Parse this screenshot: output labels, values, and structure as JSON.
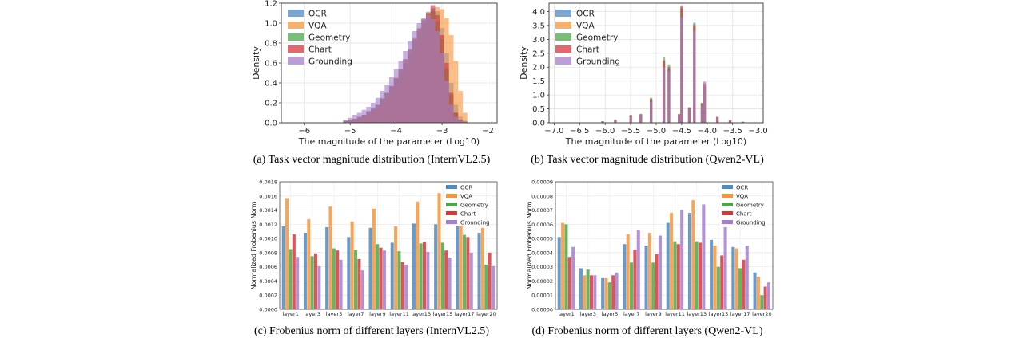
{
  "colors": {
    "OCR": "#4e8ac3",
    "VQA": "#f7953b",
    "Geometry": "#4aa84a",
    "Chart": "#d9363c",
    "Grounding": "#a57fcc"
  },
  "chart_data": [
    {
      "type": "histogram",
      "caption": "(a) Task vector magnitude distribution (InternVL2.5)",
      "xlabel": "The magnitude of the parameter (Log10)",
      "ylabel": "Density",
      "xlim": [
        -6.5,
        -1.8
      ],
      "ylim": [
        0,
        1.2
      ],
      "xticks": [
        -6,
        -5,
        -4,
        -3,
        -2
      ],
      "yticks": [
        0.0,
        0.2,
        0.4,
        0.6,
        0.8,
        1.0,
        1.2
      ],
      "legend": "top-left",
      "grid": true,
      "series_names": [
        "OCR",
        "VQA",
        "Geometry",
        "Chart",
        "Grounding"
      ],
      "bins_x": [
        -5.1,
        -5.0,
        -4.9,
        -4.8,
        -4.7,
        -4.6,
        -4.5,
        -4.4,
        -4.3,
        -4.2,
        -4.1,
        -4.0,
        -3.9,
        -3.8,
        -3.7,
        -3.6,
        -3.5,
        -3.4,
        -3.3,
        -3.2,
        -3.1,
        -3.0,
        -2.9,
        -2.8,
        -2.7,
        -2.6,
        -2.5
      ],
      "series": [
        {
          "name": "OCR",
          "values": [
            0.02,
            0.03,
            0.04,
            0.05,
            0.08,
            0.12,
            0.15,
            0.18,
            0.25,
            0.3,
            0.36,
            0.44,
            0.52,
            0.6,
            0.7,
            0.82,
            0.92,
            1.0,
            1.08,
            1.15,
            1.12,
            0.95,
            0.7,
            0.4,
            0.18,
            0.06,
            0.02
          ]
        },
        {
          "name": "VQA",
          "values": [
            0.01,
            0.02,
            0.03,
            0.04,
            0.06,
            0.08,
            0.1,
            0.13,
            0.17,
            0.21,
            0.26,
            0.32,
            0.4,
            0.48,
            0.57,
            0.66,
            0.76,
            0.86,
            0.96,
            1.06,
            1.16,
            1.14,
            1.05,
            0.88,
            0.62,
            0.32,
            0.1
          ]
        },
        {
          "name": "Geometry",
          "values": [
            0.02,
            0.03,
            0.04,
            0.06,
            0.08,
            0.11,
            0.14,
            0.18,
            0.24,
            0.3,
            0.37,
            0.45,
            0.54,
            0.63,
            0.73,
            0.84,
            0.94,
            1.03,
            1.1,
            1.12,
            1.02,
            0.84,
            0.55,
            0.28,
            0.1,
            0.03,
            0.01
          ]
        },
        {
          "name": "Chart",
          "values": [
            0.02,
            0.03,
            0.04,
            0.06,
            0.08,
            0.11,
            0.14,
            0.18,
            0.24,
            0.3,
            0.37,
            0.45,
            0.54,
            0.64,
            0.74,
            0.85,
            0.95,
            1.04,
            1.11,
            1.18,
            1.08,
            0.88,
            0.6,
            0.3,
            0.1,
            0.03,
            0.01
          ]
        },
        {
          "name": "Grounding",
          "values": [
            0.03,
            0.05,
            0.08,
            0.1,
            0.13,
            0.16,
            0.2,
            0.25,
            0.32,
            0.38,
            0.46,
            0.54,
            0.62,
            0.72,
            0.82,
            0.92,
            1.0,
            1.05,
            1.08,
            1.04,
            0.92,
            0.7,
            0.42,
            0.18,
            0.06,
            0.02,
            0.01
          ]
        }
      ]
    },
    {
      "type": "histogram",
      "caption": "(b) Task vector magnitude distribution (Qwen2-VL)",
      "xlabel": "The magnitude of the parameter (Log10)",
      "ylabel": "Density",
      "xlim": [
        -7.1,
        -2.9
      ],
      "ylim": [
        0,
        4.3
      ],
      "xticks": [
        -7.0,
        -6.5,
        -6.0,
        -5.5,
        -5.0,
        -4.5,
        -4.0,
        -3.5,
        -3.0
      ],
      "yticks": [
        0.0,
        0.5,
        1.0,
        1.5,
        2.0,
        2.5,
        3.0,
        3.5,
        4.0
      ],
      "legend": "top-left",
      "grid": true,
      "series_names": [
        "OCR",
        "VQA",
        "Geometry",
        "Chart",
        "Grounding"
      ],
      "bins_x": [
        -6.05,
        -5.8,
        -5.5,
        -5.3,
        -5.1,
        -4.85,
        -4.75,
        -4.55,
        -4.5,
        -4.35,
        -4.25,
        -4.1,
        -4.05,
        -3.8,
        -3.55,
        -3.3
      ],
      "series": [
        {
          "name": "OCR",
          "values": [
            0.05,
            0.1,
            0.28,
            0.3,
            0.85,
            2.2,
            1.95,
            0.3,
            4.15,
            0.55,
            3.55,
            0.7,
            1.35,
            0.2,
            0.08,
            0.03
          ]
        },
        {
          "name": "VQA",
          "values": [
            0.05,
            0.1,
            0.25,
            0.3,
            0.8,
            2.1,
            1.8,
            0.28,
            4.0,
            0.5,
            3.4,
            0.65,
            1.45,
            0.22,
            0.1,
            0.04
          ]
        },
        {
          "name": "Geometry",
          "values": [
            0.05,
            0.12,
            0.28,
            0.32,
            0.9,
            2.35,
            2.1,
            0.32,
            4.1,
            0.55,
            3.6,
            0.72,
            1.3,
            0.2,
            0.08,
            0.03
          ]
        },
        {
          "name": "Chart",
          "values": [
            0.05,
            0.1,
            0.26,
            0.3,
            0.85,
            2.25,
            2.0,
            0.3,
            4.2,
            0.55,
            3.5,
            0.7,
            1.4,
            0.21,
            0.09,
            0.03
          ]
        },
        {
          "name": "Grounding",
          "values": [
            0.04,
            0.09,
            0.22,
            0.28,
            0.75,
            2.0,
            1.85,
            0.28,
            3.8,
            0.5,
            3.3,
            0.64,
            1.48,
            0.2,
            0.1,
            0.04
          ]
        }
      ]
    },
    {
      "type": "bar",
      "caption": "(c) Frobenius norm of different layers (InternVL2.5)",
      "xlabel": "",
      "ylabel": "Normalized Frobenius Norm",
      "categories": [
        "layer1",
        "layer3",
        "layer5",
        "layer7",
        "layer9",
        "layer11",
        "layer13",
        "layer15",
        "layer17",
        "layer20"
      ],
      "ylim": [
        0,
        0.0018
      ],
      "yticks": [
        "0.0000",
        "0.0002",
        "0.0004",
        "0.0006",
        "0.0008",
        "0.0010",
        "0.0012",
        "0.0014",
        "0.0016",
        "0.0018"
      ],
      "legend": "top-right",
      "grid": true,
      "series": [
        {
          "name": "OCR",
          "values": [
            0.00117,
            0.00108,
            0.00116,
            0.00102,
            0.00115,
            0.00094,
            0.00121,
            0.0012,
            0.00117,
            0.00108
          ]
        },
        {
          "name": "VQA",
          "values": [
            0.00157,
            0.00127,
            0.00145,
            0.00124,
            0.00142,
            0.00117,
            0.00152,
            0.00164,
            0.00118,
            0.00115
          ]
        },
        {
          "name": "Geometry",
          "values": [
            0.00085,
            0.00075,
            0.00086,
            0.00084,
            0.00092,
            0.00082,
            0.00093,
            0.00094,
            0.00105,
            0.00063
          ]
        },
        {
          "name": "Chart",
          "values": [
            0.00106,
            0.00079,
            0.00083,
            0.00071,
            0.00087,
            0.00067,
            0.00095,
            0.00083,
            0.00102,
            0.0008
          ]
        },
        {
          "name": "Grounding",
          "values": [
            0.00074,
            0.00061,
            0.0007,
            0.00055,
            0.00083,
            0.00063,
            0.00081,
            0.00073,
            0.0008,
            0.00061
          ]
        }
      ]
    },
    {
      "type": "bar",
      "caption": "(d) Frobenius norm of different layers (Qwen2-VL)",
      "xlabel": "",
      "ylabel": "Normalized Frobenius Norm",
      "categories": [
        "layer1",
        "layer3",
        "layer5",
        "layer7",
        "layer9",
        "layer11",
        "layer13",
        "layer15",
        "layer17",
        "layer20"
      ],
      "ylim": [
        0,
        9e-05
      ],
      "yticks": [
        "0.00000",
        "0.00001",
        "0.00002",
        "0.00003",
        "0.00004",
        "0.00005",
        "0.00006",
        "0.00007",
        "0.00008",
        "0.00009"
      ],
      "legend": "top-right",
      "grid": true,
      "series": [
        {
          "name": "OCR",
          "values": [
            5.1e-05,
            2.9e-05,
            2.2e-05,
            4.6e-05,
            4.5e-05,
            6.1e-05,
            6.8e-05,
            4.9e-05,
            4.4e-05,
            2.6e-05
          ]
        },
        {
          "name": "VQA",
          "values": [
            6.1e-05,
            2.4e-05,
            2.2e-05,
            5.3e-05,
            5.4e-05,
            6.8e-05,
            7.7e-05,
            4.5e-05,
            4.3e-05,
            2.3e-05
          ]
        },
        {
          "name": "Geometry",
          "values": [
            6e-05,
            2.8e-05,
            1.9e-05,
            3.3e-05,
            3.3e-05,
            4.8e-05,
            4.8e-05,
            3e-05,
            2.9e-05,
            1e-05
          ]
        },
        {
          "name": "Chart",
          "values": [
            3.7e-05,
            2.4e-05,
            2.4e-05,
            4.2e-05,
            3.9e-05,
            4.6e-05,
            4.7e-05,
            3.8e-05,
            3.5e-05,
            1.6e-05
          ]
        },
        {
          "name": "Grounding",
          "values": [
            4.4e-05,
            2.4e-05,
            2.6e-05,
            5.6e-05,
            5.2e-05,
            7e-05,
            7.4e-05,
            5.8e-05,
            4.5e-05,
            1.9e-05
          ]
        }
      ]
    }
  ]
}
